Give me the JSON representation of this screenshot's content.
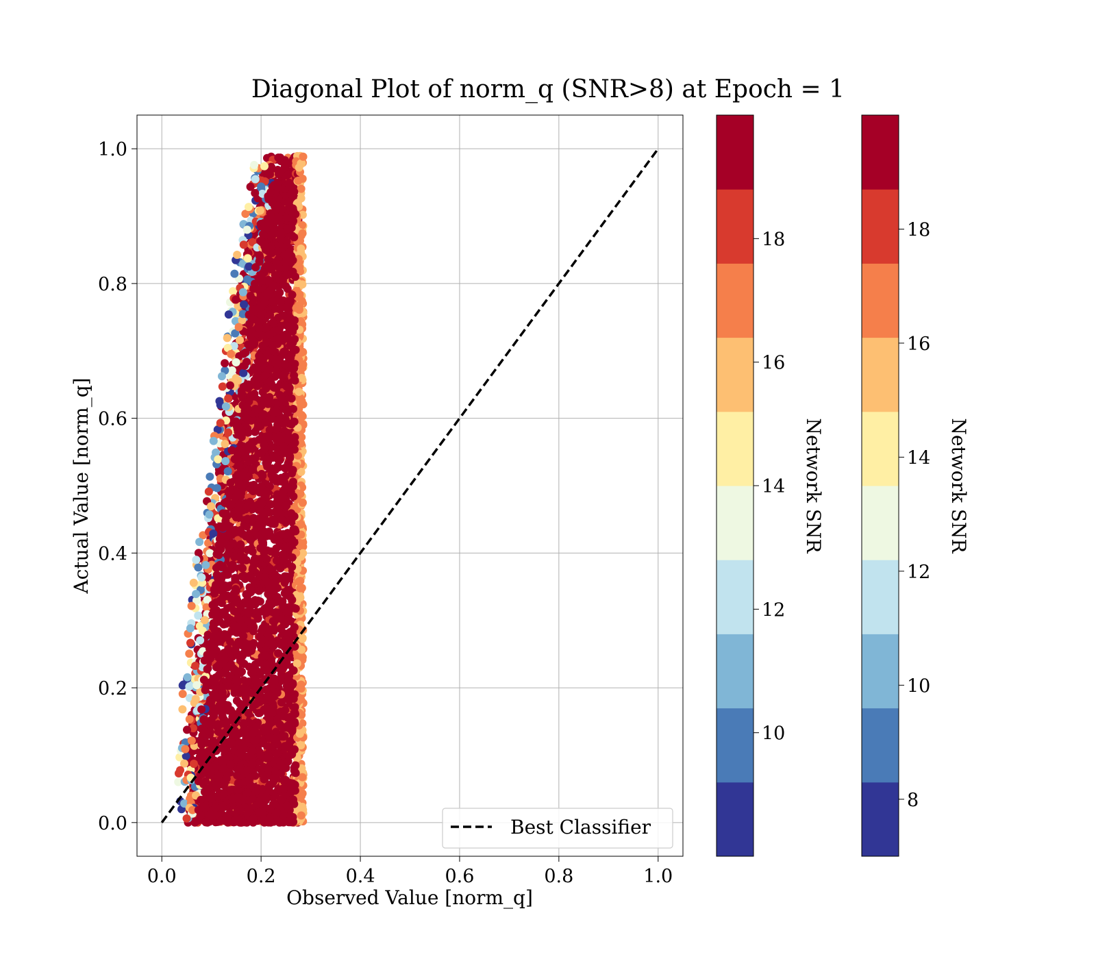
{
  "chart_data": {
    "type": "scatter",
    "title": "Diagonal Plot of norm_q (SNR>8) at Epoch = 1",
    "xlabel": "Observed Value [norm_q]",
    "ylabel": "Actual Value [norm_q]",
    "xlim": [
      -0.05,
      1.05
    ],
    "ylim": [
      -0.05,
      1.05
    ],
    "x_ticks": [
      "0.0",
      "0.2",
      "0.4",
      "0.6",
      "0.8",
      "1.0"
    ],
    "y_ticks": [
      "0.0",
      "0.2",
      "0.4",
      "0.6",
      "0.8",
      "1.0"
    ],
    "grid": true,
    "legend": {
      "placement": "lower-right",
      "entries": [
        "Best Classifier"
      ]
    },
    "reference_line": {
      "name": "Best Classifier",
      "style": "dashed",
      "color": "#000000",
      "x": [
        0,
        1
      ],
      "y": [
        0,
        1
      ]
    },
    "scatter_envelope": {
      "description_points_x_at_y": [
        {
          "y": 0.0,
          "x_min": 0.04,
          "x_max": 0.285
        },
        {
          "y": 0.2,
          "x_min": 0.05,
          "x_max": 0.285
        },
        {
          "y": 0.4,
          "x_min": 0.08,
          "x_max": 0.285
        },
        {
          "y": 0.6,
          "x_min": 0.12,
          "x_max": 0.285
        },
        {
          "y": 0.8,
          "x_min": 0.15,
          "x_max": 0.285
        },
        {
          "y": 1.0,
          "x_min": 0.2,
          "x_max": 0.285
        }
      ],
      "dominant_color": "#a50026"
    },
    "colorbars": [
      {
        "label": "Network SNR",
        "range": [
          8,
          20
        ],
        "ticks": [
          "10",
          "12",
          "14",
          "16",
          "18"
        ],
        "tick_values": [
          10,
          12,
          14,
          16,
          18
        ]
      },
      {
        "label": "Network SNR",
        "range": [
          7,
          20
        ],
        "ticks": [
          "8",
          "10",
          "12",
          "14",
          "16",
          "18"
        ],
        "tick_values": [
          8,
          10,
          12,
          14,
          16,
          18
        ]
      }
    ],
    "colormap": [
      "#313695",
      "#4575b4",
      "#74add1",
      "#abd9e9",
      "#e0f3f8",
      "#ffffbf",
      "#fee090",
      "#fdae61",
      "#f46d43",
      "#d73027"
    ],
    "colormap_10": [
      "#313695",
      "#4a7bb7",
      "#80b6d6",
      "#c1e3ee",
      "#eef8e2",
      "#ffefa4",
      "#fdbf72",
      "#f57f4b",
      "#d83a2e",
      "#a50026"
    ]
  }
}
